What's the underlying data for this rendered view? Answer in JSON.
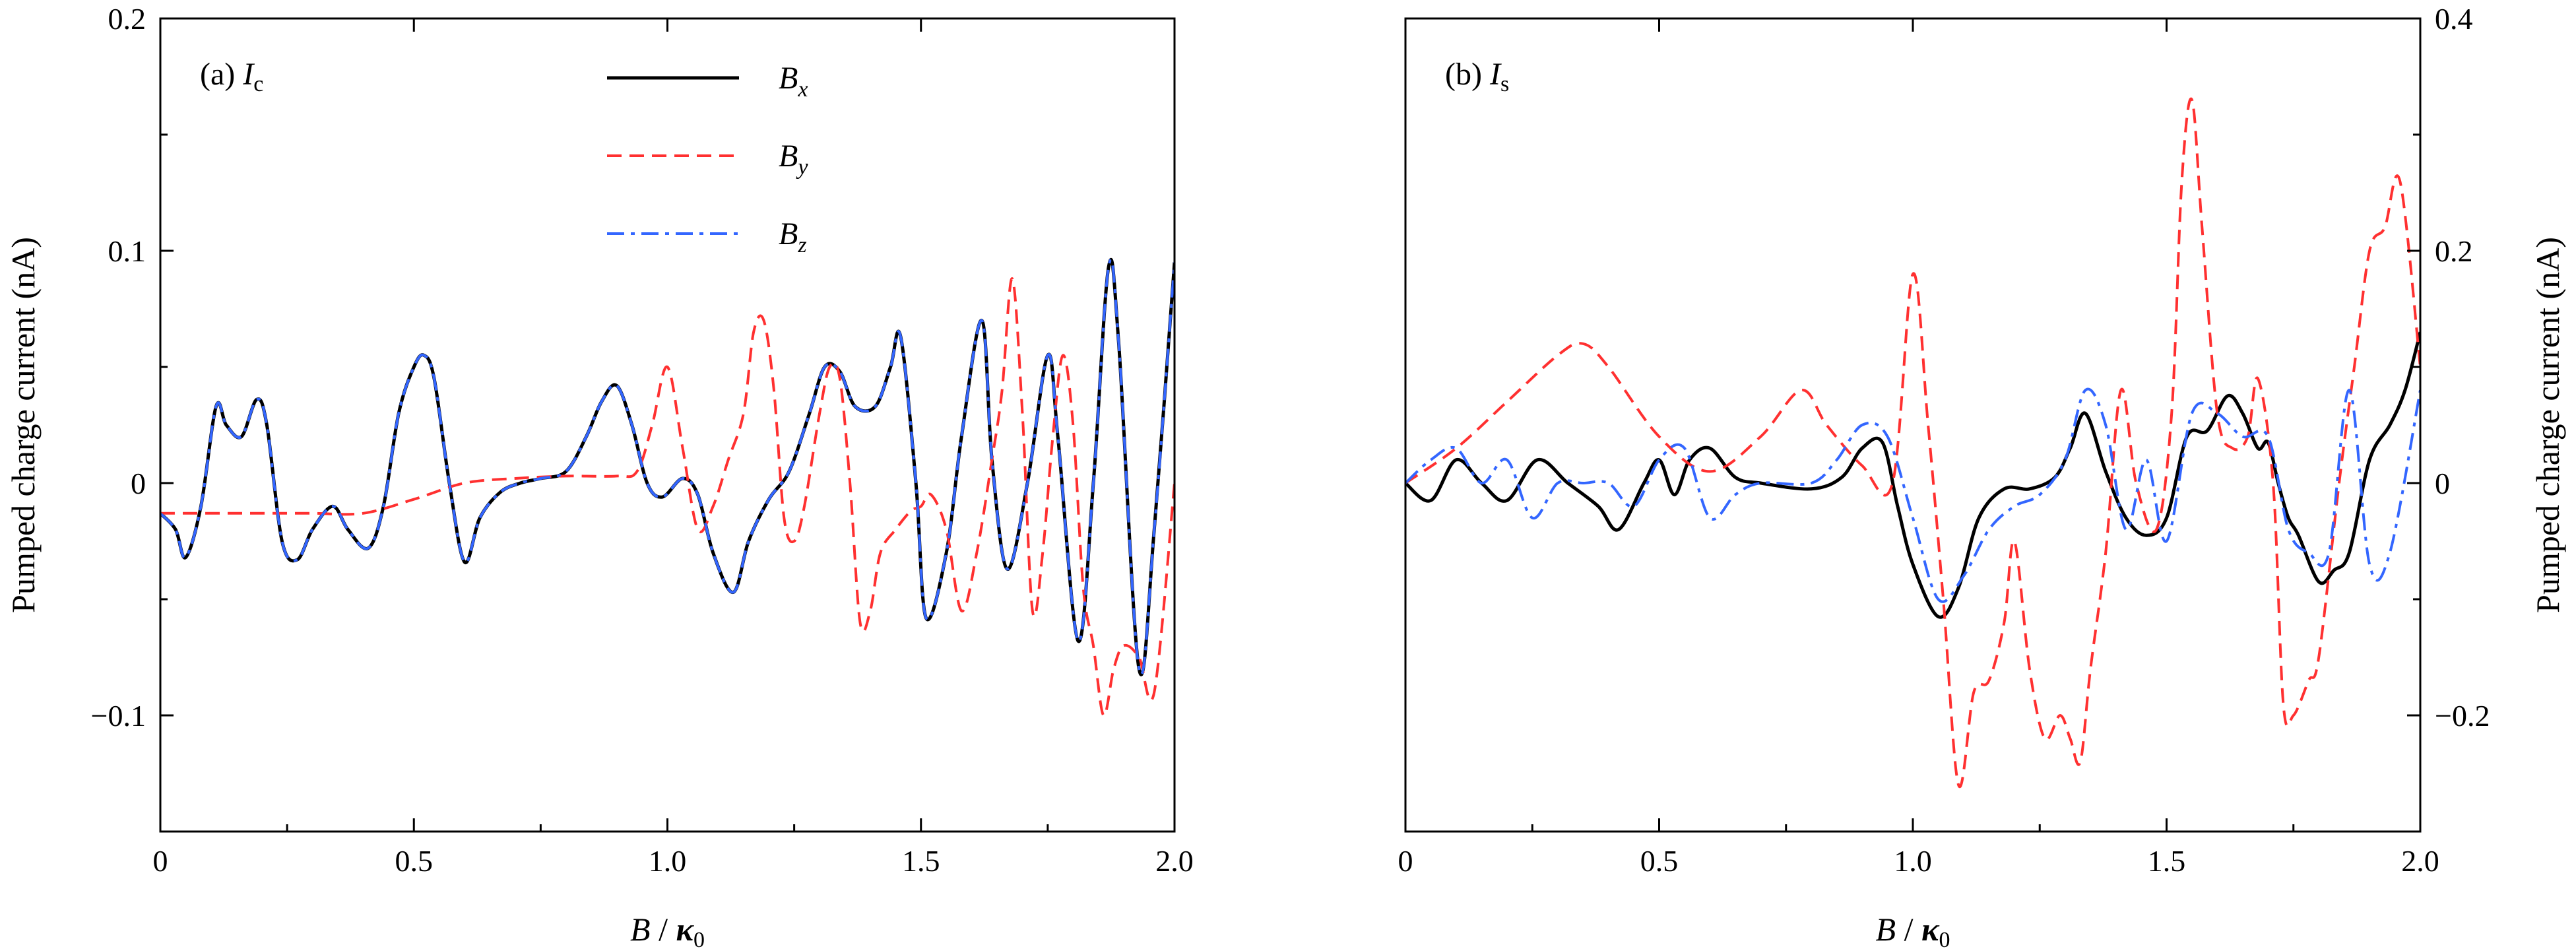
{
  "chart_data": [
    {
      "type": "line",
      "panel_label": "(a) ",
      "panel_var": "I",
      "panel_sub": "c",
      "xlabel": "B / κ0",
      "xlabel_parts": {
        "var": "B",
        "sep": " / ",
        "kappa": "κ",
        "sub": "0"
      },
      "ylabel": "Pumped charge current (nA)",
      "xlim": [
        0,
        2.0
      ],
      "ylim": [
        -0.15,
        0.2
      ],
      "xticks": [
        "0",
        "0.5",
        "1.0",
        "1.5",
        "2.0"
      ],
      "xtick_values": [
        0,
        0.5,
        1.0,
        1.5,
        2.0
      ],
      "yticks": [
        "−0.1",
        "0",
        "0.1",
        "0.2"
      ],
      "ytick_values": [
        -0.1,
        0,
        0.1,
        0.2
      ],
      "y_axis_side": "left",
      "legend": [
        {
          "var": "B",
          "sub": "x"
        },
        {
          "var": "B",
          "sub": "y"
        },
        {
          "var": "B",
          "sub": "z"
        }
      ],
      "series": [
        {
          "name": "Bx",
          "color": "#000000",
          "style": "solid",
          "x": [
            0,
            0.03,
            0.05,
            0.08,
            0.11,
            0.13,
            0.16,
            0.19,
            0.21,
            0.24,
            0.27,
            0.3,
            0.34,
            0.37,
            0.41,
            0.44,
            0.47,
            0.5,
            0.52,
            0.54,
            0.57,
            0.6,
            0.63,
            0.67,
            0.71,
            0.75,
            0.8,
            0.84,
            0.87,
            0.9,
            0.93,
            0.96,
            0.99,
            1.03,
            1.06,
            1.09,
            1.13,
            1.16,
            1.2,
            1.24,
            1.28,
            1.31,
            1.34,
            1.37,
            1.41,
            1.44,
            1.46,
            1.49,
            1.51,
            1.55,
            1.58,
            1.62,
            1.64,
            1.67,
            1.71,
            1.75,
            1.77,
            1.81,
            1.84,
            1.87,
            1.89,
            1.93,
            1.96,
            2.0
          ],
          "y": [
            -0.013,
            -0.02,
            -0.032,
            -0.01,
            0.033,
            0.025,
            0.02,
            0.036,
            0.025,
            -0.025,
            -0.033,
            -0.02,
            -0.01,
            -0.02,
            -0.028,
            -0.01,
            0.03,
            0.05,
            0.055,
            0.045,
            0.0,
            -0.034,
            -0.015,
            -0.004,
            0.0,
            0.002,
            0.005,
            0.02,
            0.035,
            0.042,
            0.025,
            0.0,
            -0.006,
            0.002,
            -0.005,
            -0.03,
            -0.047,
            -0.025,
            -0.007,
            0.005,
            0.03,
            0.05,
            0.048,
            0.033,
            0.033,
            0.05,
            0.063,
            0.0,
            -0.058,
            -0.03,
            0.02,
            0.07,
            0.01,
            -0.037,
            0.0,
            0.055,
            0.02,
            -0.068,
            0.0,
            0.093,
            0.06,
            -0.08,
            -0.02,
            0.095
          ]
        },
        {
          "name": "By",
          "color": "#ff3030",
          "style": "dashed",
          "x": [
            0,
            0.1,
            0.2,
            0.3,
            0.4,
            0.5,
            0.6,
            0.7,
            0.8,
            0.9,
            0.94,
            0.97,
            1.0,
            1.03,
            1.06,
            1.09,
            1.12,
            1.15,
            1.17,
            1.19,
            1.21,
            1.23,
            1.25,
            1.27,
            1.3,
            1.32,
            1.34,
            1.36,
            1.38,
            1.4,
            1.42,
            1.45,
            1.48,
            1.5,
            1.52,
            1.55,
            1.58,
            1.61,
            1.64,
            1.66,
            1.68,
            1.7,
            1.72,
            1.74,
            1.76,
            1.78,
            1.8,
            1.82,
            1.84,
            1.86,
            1.88,
            1.9,
            1.93,
            1.96,
            2.0
          ],
          "y": [
            -0.013,
            -0.013,
            -0.013,
            -0.013,
            -0.013,
            -0.007,
            0.0,
            0.002,
            0.003,
            0.003,
            0.005,
            0.025,
            0.05,
            0.015,
            -0.02,
            -0.01,
            0.01,
            0.03,
            0.065,
            0.07,
            0.04,
            -0.015,
            -0.025,
            -0.01,
            0.03,
            0.05,
            0.045,
            0.0,
            -0.06,
            -0.055,
            -0.03,
            -0.02,
            -0.012,
            -0.01,
            -0.005,
            -0.02,
            -0.055,
            -0.03,
            0.01,
            0.04,
            0.088,
            0.03,
            -0.055,
            -0.03,
            0.02,
            0.055,
            0.025,
            -0.045,
            -0.07,
            -0.1,
            -0.08,
            -0.07,
            -0.075,
            -0.09,
            0.0
          ]
        },
        {
          "name": "Bz",
          "color": "#3366ff",
          "style": "dashdot",
          "x": [
            0,
            0.03,
            0.05,
            0.08,
            0.11,
            0.13,
            0.16,
            0.19,
            0.21,
            0.24,
            0.27,
            0.3,
            0.34,
            0.37,
            0.41,
            0.44,
            0.47,
            0.5,
            0.52,
            0.54,
            0.57,
            0.6,
            0.63,
            0.67,
            0.71,
            0.75,
            0.8,
            0.84,
            0.87,
            0.9,
            0.93,
            0.96,
            0.99,
            1.03,
            1.06,
            1.09,
            1.13,
            1.16,
            1.2,
            1.24,
            1.28,
            1.31,
            1.34,
            1.37,
            1.41,
            1.44,
            1.46,
            1.49,
            1.51,
            1.55,
            1.58,
            1.62,
            1.64,
            1.67,
            1.71,
            1.75,
            1.77,
            1.81,
            1.84,
            1.87,
            1.89,
            1.93,
            1.96,
            2.0
          ],
          "y": [
            -0.013,
            -0.02,
            -0.032,
            -0.01,
            0.033,
            0.025,
            0.02,
            0.036,
            0.025,
            -0.025,
            -0.033,
            -0.02,
            -0.01,
            -0.02,
            -0.028,
            -0.01,
            0.03,
            0.05,
            0.055,
            0.045,
            0.0,
            -0.034,
            -0.015,
            -0.004,
            0.0,
            0.002,
            0.005,
            0.02,
            0.035,
            0.042,
            0.025,
            0.0,
            -0.006,
            0.002,
            -0.005,
            -0.03,
            -0.047,
            -0.025,
            -0.007,
            0.005,
            0.03,
            0.05,
            0.048,
            0.033,
            0.033,
            0.05,
            0.063,
            0.0,
            -0.058,
            -0.03,
            0.02,
            0.07,
            0.01,
            -0.037,
            0.0,
            0.055,
            0.02,
            -0.068,
            0.0,
            0.093,
            0.06,
            -0.08,
            -0.02,
            0.095
          ]
        }
      ]
    },
    {
      "type": "line",
      "panel_label": "(b) ",
      "panel_var": "I",
      "panel_sub": "s",
      "xlabel": "B / κ0",
      "xlabel_parts": {
        "var": "B",
        "sep": " / ",
        "kappa": "κ",
        "sub": "0"
      },
      "ylabel": "Pumped charge current (nA)",
      "xlim": [
        0,
        2.0
      ],
      "ylim": [
        -0.3,
        0.4
      ],
      "xticks": [
        "0",
        "0.5",
        "1.0",
        "1.5",
        "2.0"
      ],
      "xtick_values": [
        0,
        0.5,
        1.0,
        1.5,
        2.0
      ],
      "yticks": [
        "−0.2",
        "0",
        "0.2",
        "0.4"
      ],
      "ytick_values": [
        -0.2,
        0,
        0.2,
        0.4
      ],
      "y_axis_side": "right",
      "legend": [],
      "series": [
        {
          "name": "Bx",
          "color": "#000000",
          "style": "solid",
          "x": [
            0,
            0.05,
            0.1,
            0.15,
            0.2,
            0.26,
            0.32,
            0.38,
            0.42,
            0.47,
            0.5,
            0.53,
            0.56,
            0.6,
            0.65,
            0.7,
            0.8,
            0.86,
            0.9,
            0.94,
            0.97,
            1.0,
            1.05,
            1.09,
            1.13,
            1.18,
            1.23,
            1.28,
            1.31,
            1.34,
            1.38,
            1.42,
            1.46,
            1.5,
            1.54,
            1.58,
            1.62,
            1.65,
            1.68,
            1.7,
            1.72,
            1.74,
            1.76,
            1.8,
            1.83,
            1.86,
            1.9,
            1.94,
            1.97,
            2.0
          ],
          "y": [
            0.0,
            -0.015,
            0.02,
            0.0,
            -0.015,
            0.02,
            0.0,
            -0.02,
            -0.04,
            0.0,
            0.02,
            -0.01,
            0.02,
            0.03,
            0.005,
            0.0,
            -0.005,
            0.005,
            0.03,
            0.035,
            -0.02,
            -0.07,
            -0.115,
            -0.09,
            -0.03,
            -0.005,
            -0.005,
            0.005,
            0.03,
            0.06,
            0.01,
            -0.03,
            -0.045,
            -0.03,
            0.04,
            0.045,
            0.075,
            0.06,
            0.03,
            0.035,
            0.0,
            -0.03,
            -0.045,
            -0.085,
            -0.075,
            -0.06,
            0.02,
            0.05,
            0.08,
            0.13
          ]
        },
        {
          "name": "By",
          "color": "#ff3030",
          "style": "dashed",
          "x": [
            0,
            0.1,
            0.2,
            0.3,
            0.35,
            0.4,
            0.5,
            0.6,
            0.7,
            0.78,
            0.83,
            0.9,
            0.96,
            1.0,
            1.03,
            1.06,
            1.09,
            1.12,
            1.15,
            1.18,
            1.2,
            1.23,
            1.26,
            1.29,
            1.31,
            1.33,
            1.35,
            1.38,
            1.41,
            1.44,
            1.48,
            1.51,
            1.53,
            1.55,
            1.57,
            1.6,
            1.63,
            1.66,
            1.68,
            1.71,
            1.73,
            1.75,
            1.78,
            1.8,
            1.84,
            1.87,
            1.9,
            1.93,
            1.96,
            2.0
          ],
          "y": [
            0.0,
            0.03,
            0.07,
            0.11,
            0.12,
            0.1,
            0.04,
            0.01,
            0.04,
            0.08,
            0.05,
            0.015,
            0.0,
            0.18,
            0.05,
            -0.1,
            -0.26,
            -0.18,
            -0.17,
            -0.12,
            -0.05,
            -0.16,
            -0.22,
            -0.2,
            -0.22,
            -0.24,
            -0.16,
            -0.06,
            0.08,
            0.0,
            -0.04,
            0.06,
            0.26,
            0.33,
            0.22,
            0.06,
            0.03,
            0.04,
            0.09,
            0.0,
            -0.19,
            -0.2,
            -0.17,
            -0.15,
            0.0,
            0.1,
            0.2,
            0.22,
            0.26,
            0.1
          ]
        },
        {
          "name": "Bz",
          "color": "#3366ff",
          "style": "dashdot",
          "x": [
            0,
            0.05,
            0.1,
            0.15,
            0.2,
            0.25,
            0.3,
            0.35,
            0.4,
            0.45,
            0.5,
            0.55,
            0.6,
            0.65,
            0.7,
            0.8,
            0.85,
            0.9,
            0.95,
            1.0,
            1.05,
            1.1,
            1.15,
            1.2,
            1.25,
            1.3,
            1.34,
            1.38,
            1.42,
            1.46,
            1.5,
            1.55,
            1.6,
            1.65,
            1.7,
            1.74,
            1.78,
            1.82,
            1.86,
            1.9,
            1.94,
            2.0
          ],
          "y": [
            0.0,
            0.02,
            0.03,
            0.0,
            0.02,
            -0.03,
            0.0,
            0.0,
            0.0,
            -0.02,
            0.02,
            0.03,
            -0.03,
            -0.01,
            0.0,
            0.0,
            0.02,
            0.05,
            0.04,
            -0.03,
            -0.1,
            -0.08,
            -0.04,
            -0.02,
            -0.01,
            0.02,
            0.08,
            0.05,
            -0.04,
            0.02,
            -0.05,
            0.06,
            0.06,
            0.04,
            0.04,
            -0.04,
            -0.06,
            -0.06,
            0.08,
            -0.07,
            -0.06,
            0.08
          ]
        }
      ]
    }
  ]
}
